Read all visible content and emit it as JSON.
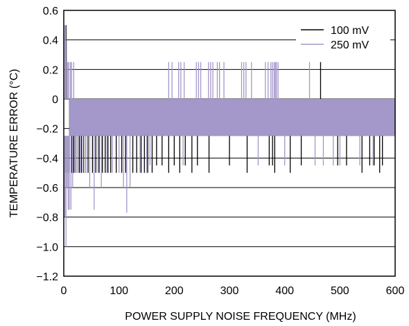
{
  "chart_data": {
    "type": "line",
    "title": "",
    "xlabel": "POWER SUPPLY NOISE FREQUENCY (MHz)",
    "ylabel": "TEMPERATURE ERROR (°C)",
    "xlim": [
      0,
      600
    ],
    "ylim": [
      -1.2,
      0.6
    ],
    "x_ticks": [
      0,
      100,
      200,
      300,
      400,
      500,
      600
    ],
    "x_tick_labels": [
      "0",
      "100",
      "200",
      "300",
      "400",
      "500",
      "600"
    ],
    "y_ticks": [
      0.6,
      0.4,
      0.2,
      0,
      -0.2,
      -0.4,
      -0.6,
      -0.8,
      -1.0,
      -1.2
    ],
    "y_tick_labels": [
      "0.6",
      "0.4",
      "0.2",
      "0",
      "−0.2",
      "−0.4",
      "−0.6",
      "−0.8",
      "−1.0",
      "−1.2"
    ],
    "grid": "horizontal",
    "legend_position": "top-right",
    "series": [
      {
        "name": "100 mV",
        "color": "#000000",
        "band": [
          -0.25,
          0
        ],
        "spikes": [
          {
            "x": 2,
            "y": -0.5
          },
          {
            "x": 4,
            "y": 0.5
          },
          {
            "x": 6,
            "y": -0.5
          },
          {
            "x": 10,
            "y": -0.5
          },
          {
            "x": 14,
            "y": -0.5
          },
          {
            "x": 18,
            "y": -0.5
          },
          {
            "x": 22,
            "y": -0.5
          },
          {
            "x": 28,
            "y": -0.5
          },
          {
            "x": 32,
            "y": -0.5
          },
          {
            "x": 36,
            "y": -0.5
          },
          {
            "x": 40,
            "y": -0.5
          },
          {
            "x": 44,
            "y": -0.5
          },
          {
            "x": 52,
            "y": -0.5
          },
          {
            "x": 58,
            "y": -0.5
          },
          {
            "x": 64,
            "y": -0.5
          },
          {
            "x": 70,
            "y": -0.5
          },
          {
            "x": 75,
            "y": -0.5
          },
          {
            "x": 80,
            "y": -0.5
          },
          {
            "x": 85,
            "y": -0.5
          },
          {
            "x": 95,
            "y": -0.5
          },
          {
            "x": 105,
            "y": -0.5
          },
          {
            "x": 112,
            "y": -0.5
          },
          {
            "x": 125,
            "y": -0.5
          },
          {
            "x": 132,
            "y": -0.5
          },
          {
            "x": 140,
            "y": -0.5
          },
          {
            "x": 146,
            "y": -0.5
          },
          {
            "x": 152,
            "y": -0.5
          },
          {
            "x": 160,
            "y": -0.5
          },
          {
            "x": 168,
            "y": -0.45
          },
          {
            "x": 178,
            "y": -0.45
          },
          {
            "x": 190,
            "y": -0.5
          },
          {
            "x": 200,
            "y": -0.45
          },
          {
            "x": 210,
            "y": -0.5
          },
          {
            "x": 220,
            "y": -0.45
          },
          {
            "x": 232,
            "y": -0.5
          },
          {
            "x": 237,
            "y": 0
          },
          {
            "x": 242,
            "y": -0.45
          },
          {
            "x": 263,
            "y": -0.5
          },
          {
            "x": 300,
            "y": -0.45
          },
          {
            "x": 332,
            "y": -0.5
          },
          {
            "x": 362,
            "y": 0
          },
          {
            "x": 372,
            "y": -0.45
          },
          {
            "x": 378,
            "y": -0.45
          },
          {
            "x": 382,
            "y": -0.5
          },
          {
            "x": 388,
            "y": 0
          },
          {
            "x": 410,
            "y": -0.5
          },
          {
            "x": 430,
            "y": -0.45
          },
          {
            "x": 465,
            "y": 0.25
          },
          {
            "x": 496,
            "y": -0.45
          },
          {
            "x": 512,
            "y": -0.45
          },
          {
            "x": 540,
            "y": -0.5
          },
          {
            "x": 554,
            "y": -0.45
          },
          {
            "x": 562,
            "y": -0.45
          },
          {
            "x": 572,
            "y": -0.5
          },
          {
            "x": 577,
            "y": -0.45
          }
        ]
      },
      {
        "name": "250 mV",
        "color": "#a497c9",
        "band": [
          -0.25,
          0
        ],
        "spikes": [
          {
            "x": 1,
            "y": 0.5
          },
          {
            "x": 2,
            "y": -0.8
          },
          {
            "x": 3,
            "y": 0.5
          },
          {
            "x": 4,
            "y": -1.0
          },
          {
            "x": 5,
            "y": 0.4
          },
          {
            "x": 6,
            "y": -0.6
          },
          {
            "x": 7,
            "y": 0.25
          },
          {
            "x": 8,
            "y": -0.75
          },
          {
            "x": 9,
            "y": 0.25
          },
          {
            "x": 10,
            "y": -0.75
          },
          {
            "x": 12,
            "y": 0.25
          },
          {
            "x": 13,
            "y": -0.75
          },
          {
            "x": 14,
            "y": 0.25
          },
          {
            "x": 16,
            "y": -0.6
          },
          {
            "x": 18,
            "y": 0.25
          },
          {
            "x": 20,
            "y": -0.5
          },
          {
            "x": 22,
            "y": -0.5
          },
          {
            "x": 25,
            "y": -0.5
          },
          {
            "x": 30,
            "y": -0.5
          },
          {
            "x": 35,
            "y": -0.5
          },
          {
            "x": 40,
            "y": -0.5
          },
          {
            "x": 47,
            "y": -0.6
          },
          {
            "x": 55,
            "y": -0.75
          },
          {
            "x": 62,
            "y": -0.5
          },
          {
            "x": 68,
            "y": -0.6
          },
          {
            "x": 78,
            "y": -0.5
          },
          {
            "x": 88,
            "y": -0.5
          },
          {
            "x": 100,
            "y": -0.5
          },
          {
            "x": 108,
            "y": -0.6
          },
          {
            "x": 114,
            "y": -0.77
          },
          {
            "x": 120,
            "y": -0.6
          },
          {
            "x": 138,
            "y": -0.5
          },
          {
            "x": 150,
            "y": -0.5
          },
          {
            "x": 156,
            "y": -0.45
          },
          {
            "x": 190,
            "y": 0.25
          },
          {
            "x": 196,
            "y": 0.25
          },
          {
            "x": 208,
            "y": 0.25
          },
          {
            "x": 212,
            "y": 0.25
          },
          {
            "x": 216,
            "y": -0.45
          },
          {
            "x": 218,
            "y": 0.25
          },
          {
            "x": 240,
            "y": 0.25
          },
          {
            "x": 244,
            "y": 0.25
          },
          {
            "x": 248,
            "y": 0.25
          },
          {
            "x": 262,
            "y": 0.25
          },
          {
            "x": 266,
            "y": 0.25
          },
          {
            "x": 270,
            "y": 0.25
          },
          {
            "x": 278,
            "y": 0.25
          },
          {
            "x": 282,
            "y": 0.25
          },
          {
            "x": 290,
            "y": 0.25
          },
          {
            "x": 322,
            "y": 0.25
          },
          {
            "x": 326,
            "y": 0.25
          },
          {
            "x": 330,
            "y": 0.25
          },
          {
            "x": 340,
            "y": 0.25
          },
          {
            "x": 352,
            "y": -0.45
          },
          {
            "x": 365,
            "y": 0.25
          },
          {
            "x": 370,
            "y": 0.25
          },
          {
            "x": 375,
            "y": 0.25
          },
          {
            "x": 378,
            "y": 0.25
          },
          {
            "x": 381,
            "y": 0.25
          },
          {
            "x": 383,
            "y": 0.25
          },
          {
            "x": 385,
            "y": 0.25
          },
          {
            "x": 388,
            "y": 0.25
          },
          {
            "x": 400,
            "y": -0.45
          },
          {
            "x": 445,
            "y": 0.25
          },
          {
            "x": 455,
            "y": -0.45
          },
          {
            "x": 470,
            "y": -0.45
          },
          {
            "x": 488,
            "y": -0.45
          },
          {
            "x": 500,
            "y": -0.45
          },
          {
            "x": 536,
            "y": -0.45
          },
          {
            "x": 560,
            "y": -0.45
          }
        ]
      }
    ]
  }
}
